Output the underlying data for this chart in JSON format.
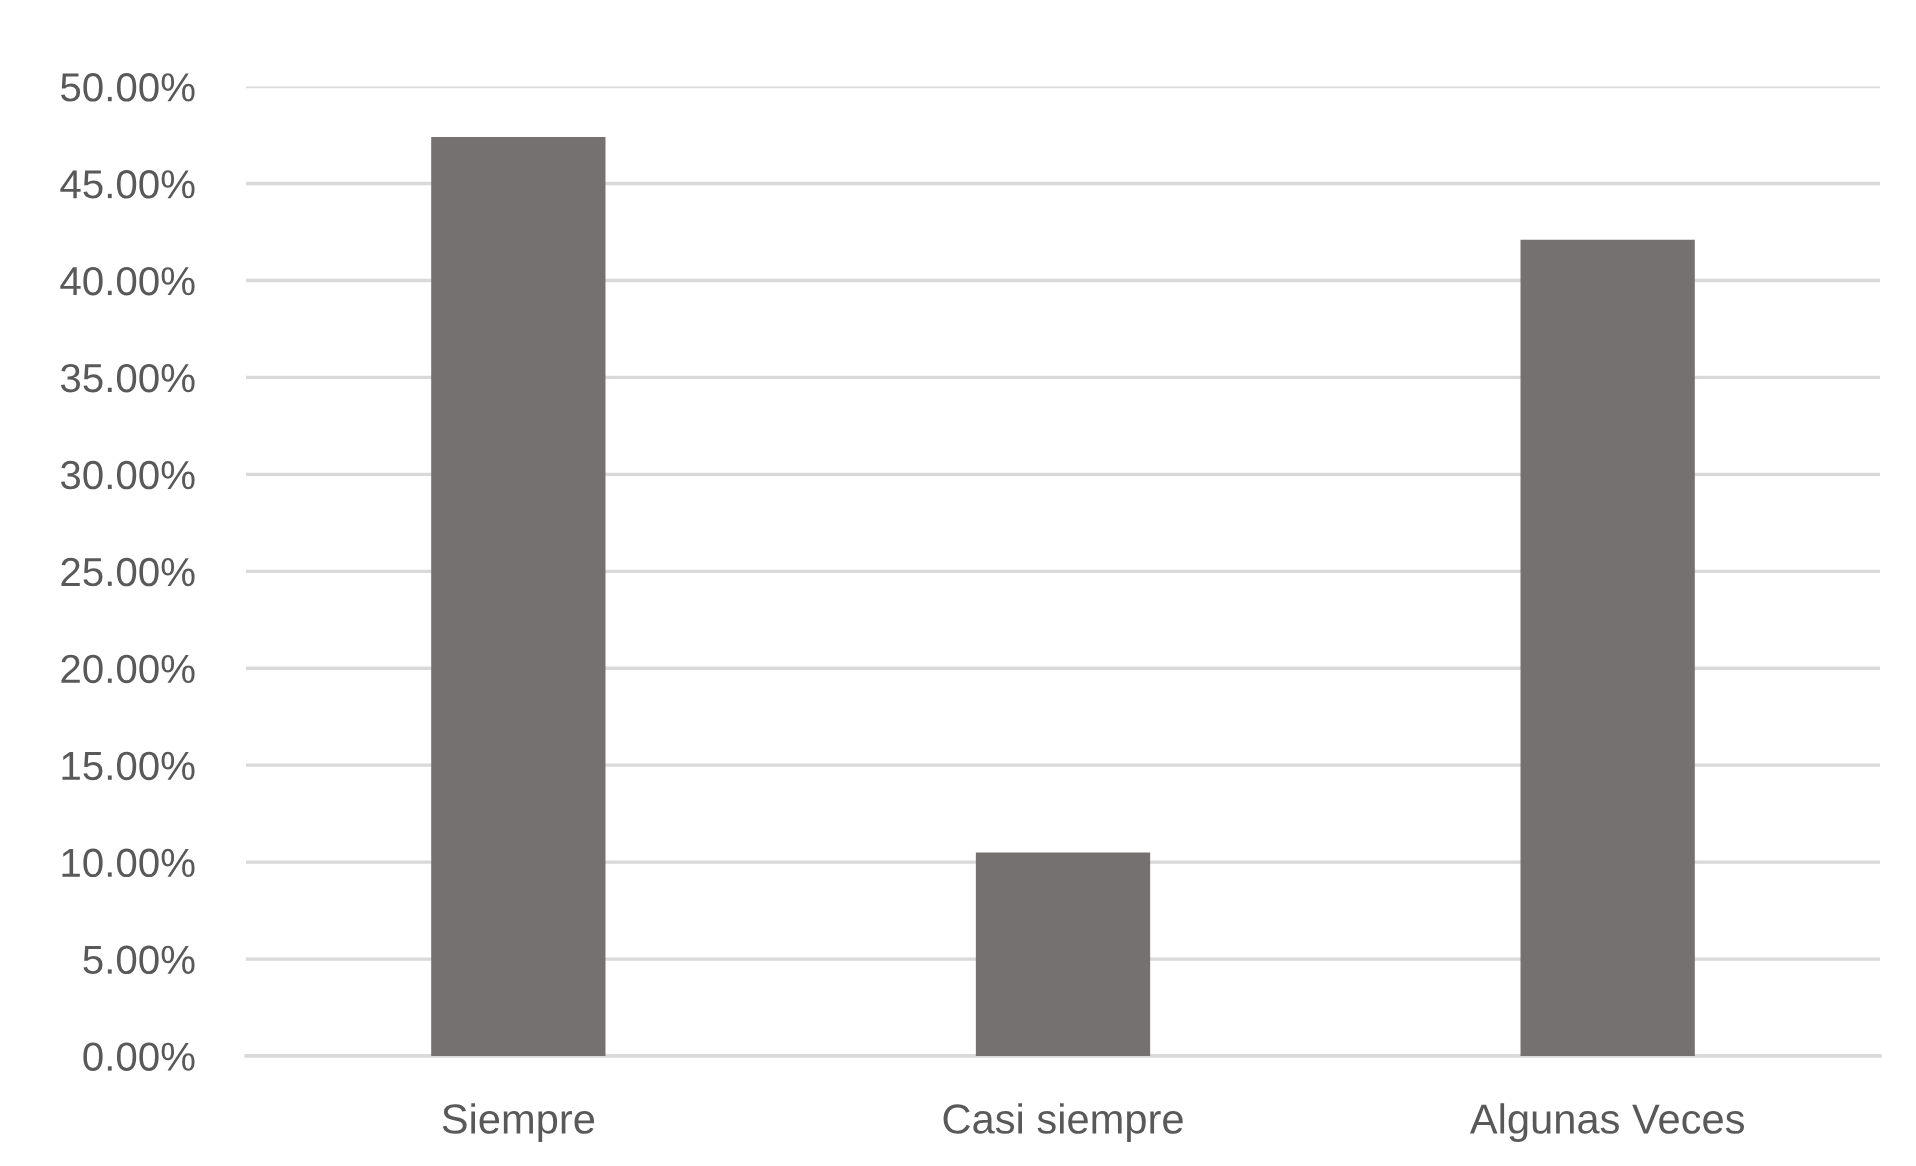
{
  "chart_data": {
    "type": "bar",
    "categories": [
      "Siempre",
      "Casi siempre",
      "Algunas Veces"
    ],
    "values": [
      47.4,
      10.5,
      42.1
    ],
    "color": "#767171",
    "ylim": [
      0,
      50
    ],
    "yticks": [
      {
        "value": 0,
        "label": "0.00%"
      },
      {
        "value": 5,
        "label": "5.00%"
      },
      {
        "value": 10,
        "label": "10.00%"
      },
      {
        "value": 15,
        "label": "15.00%"
      },
      {
        "value": 20,
        "label": "20.00%"
      },
      {
        "value": 25,
        "label": "25.00%"
      },
      {
        "value": 30,
        "label": "30.00%"
      },
      {
        "value": 35,
        "label": "35.00%"
      },
      {
        "value": 40,
        "label": "40.00%"
      },
      {
        "value": 45,
        "label": "45.00%"
      },
      {
        "value": 50,
        "label": "50.00%"
      }
    ],
    "grid": "y"
  }
}
